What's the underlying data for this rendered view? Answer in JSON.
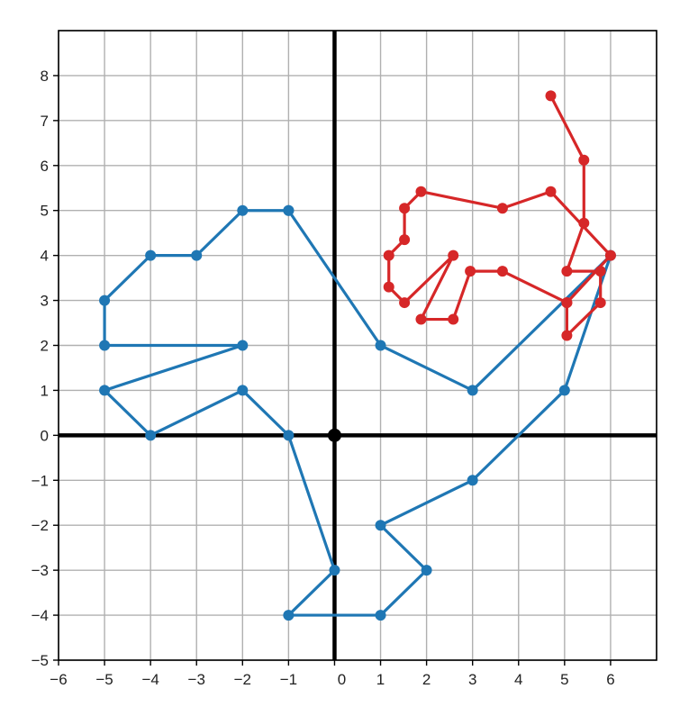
{
  "chart_data": {
    "type": "line",
    "title": "",
    "xlabel": "",
    "ylabel": "",
    "xlim": [
      -6,
      7
    ],
    "ylim": [
      -5,
      9
    ],
    "grid": true,
    "x_ticks": [
      -6,
      -5,
      -4,
      -3,
      -2,
      -1,
      0,
      1,
      2,
      3,
      4,
      5,
      6
    ],
    "y_ticks": [
      -5,
      -4,
      -3,
      -2,
      -1,
      0,
      1,
      2,
      3,
      4,
      5,
      6,
      7,
      8
    ],
    "x_tick_labels": [
      "−6",
      "−5",
      "−4",
      "−3",
      "−2",
      "−1",
      "0",
      "1",
      "2",
      "3",
      "4",
      "5",
      "6"
    ],
    "y_tick_labels": [
      "−5",
      "−4",
      "−3",
      "−2",
      "−1",
      "0",
      "1",
      "2",
      "3",
      "4",
      "5",
      "6",
      "7",
      "8"
    ],
    "colors": {
      "blue": "#1f77b4",
      "red": "#d62728",
      "axis": "#000000",
      "grid": "#b0b0b0"
    },
    "series": [
      {
        "color": "#1f77b4",
        "points": [
          [
            -1,
            5
          ],
          [
            -2,
            5
          ],
          [
            -3,
            4
          ],
          [
            -4,
            4
          ],
          [
            -5,
            3
          ],
          [
            -5,
            2
          ],
          [
            -2,
            2
          ],
          [
            -5,
            1
          ],
          [
            -4,
            0
          ],
          [
            -2,
            1
          ],
          [
            -1,
            0
          ],
          [
            0,
            -3
          ],
          [
            -1,
            -4
          ],
          [
            1,
            -4
          ],
          [
            2,
            -3
          ],
          [
            1,
            -2
          ],
          [
            3,
            -1
          ],
          [
            5,
            1
          ],
          [
            6,
            4
          ],
          [
            3,
            1
          ],
          [
            1,
            2
          ],
          [
            -1,
            5
          ]
        ]
      },
      {
        "color": "#d62728",
        "points": [
          [
            4.7,
            7.55
          ],
          [
            5.42,
            6.12
          ],
          [
            5.42,
            4.72
          ],
          [
            5.05,
            3.65
          ],
          [
            5.78,
            3.65
          ],
          [
            5.78,
            2.95
          ],
          [
            5.05,
            2.22
          ],
          [
            5.05,
            2.95
          ],
          [
            6,
            4
          ],
          [
            4.7,
            5.42
          ],
          [
            3.65,
            5.05
          ],
          [
            1.88,
            5.42
          ],
          [
            1.52,
            5.05
          ],
          [
            1.52,
            4.35
          ],
          [
            1.18,
            4
          ],
          [
            1.18,
            3.3
          ],
          [
            1.52,
            2.95
          ],
          [
            2.58,
            4
          ],
          [
            1.88,
            2.58
          ],
          [
            2.58,
            2.58
          ],
          [
            2.95,
            3.65
          ],
          [
            3.65,
            3.65
          ],
          [
            5.05,
            2.95
          ]
        ]
      }
    ],
    "origin_marker": [
      0,
      0
    ]
  }
}
